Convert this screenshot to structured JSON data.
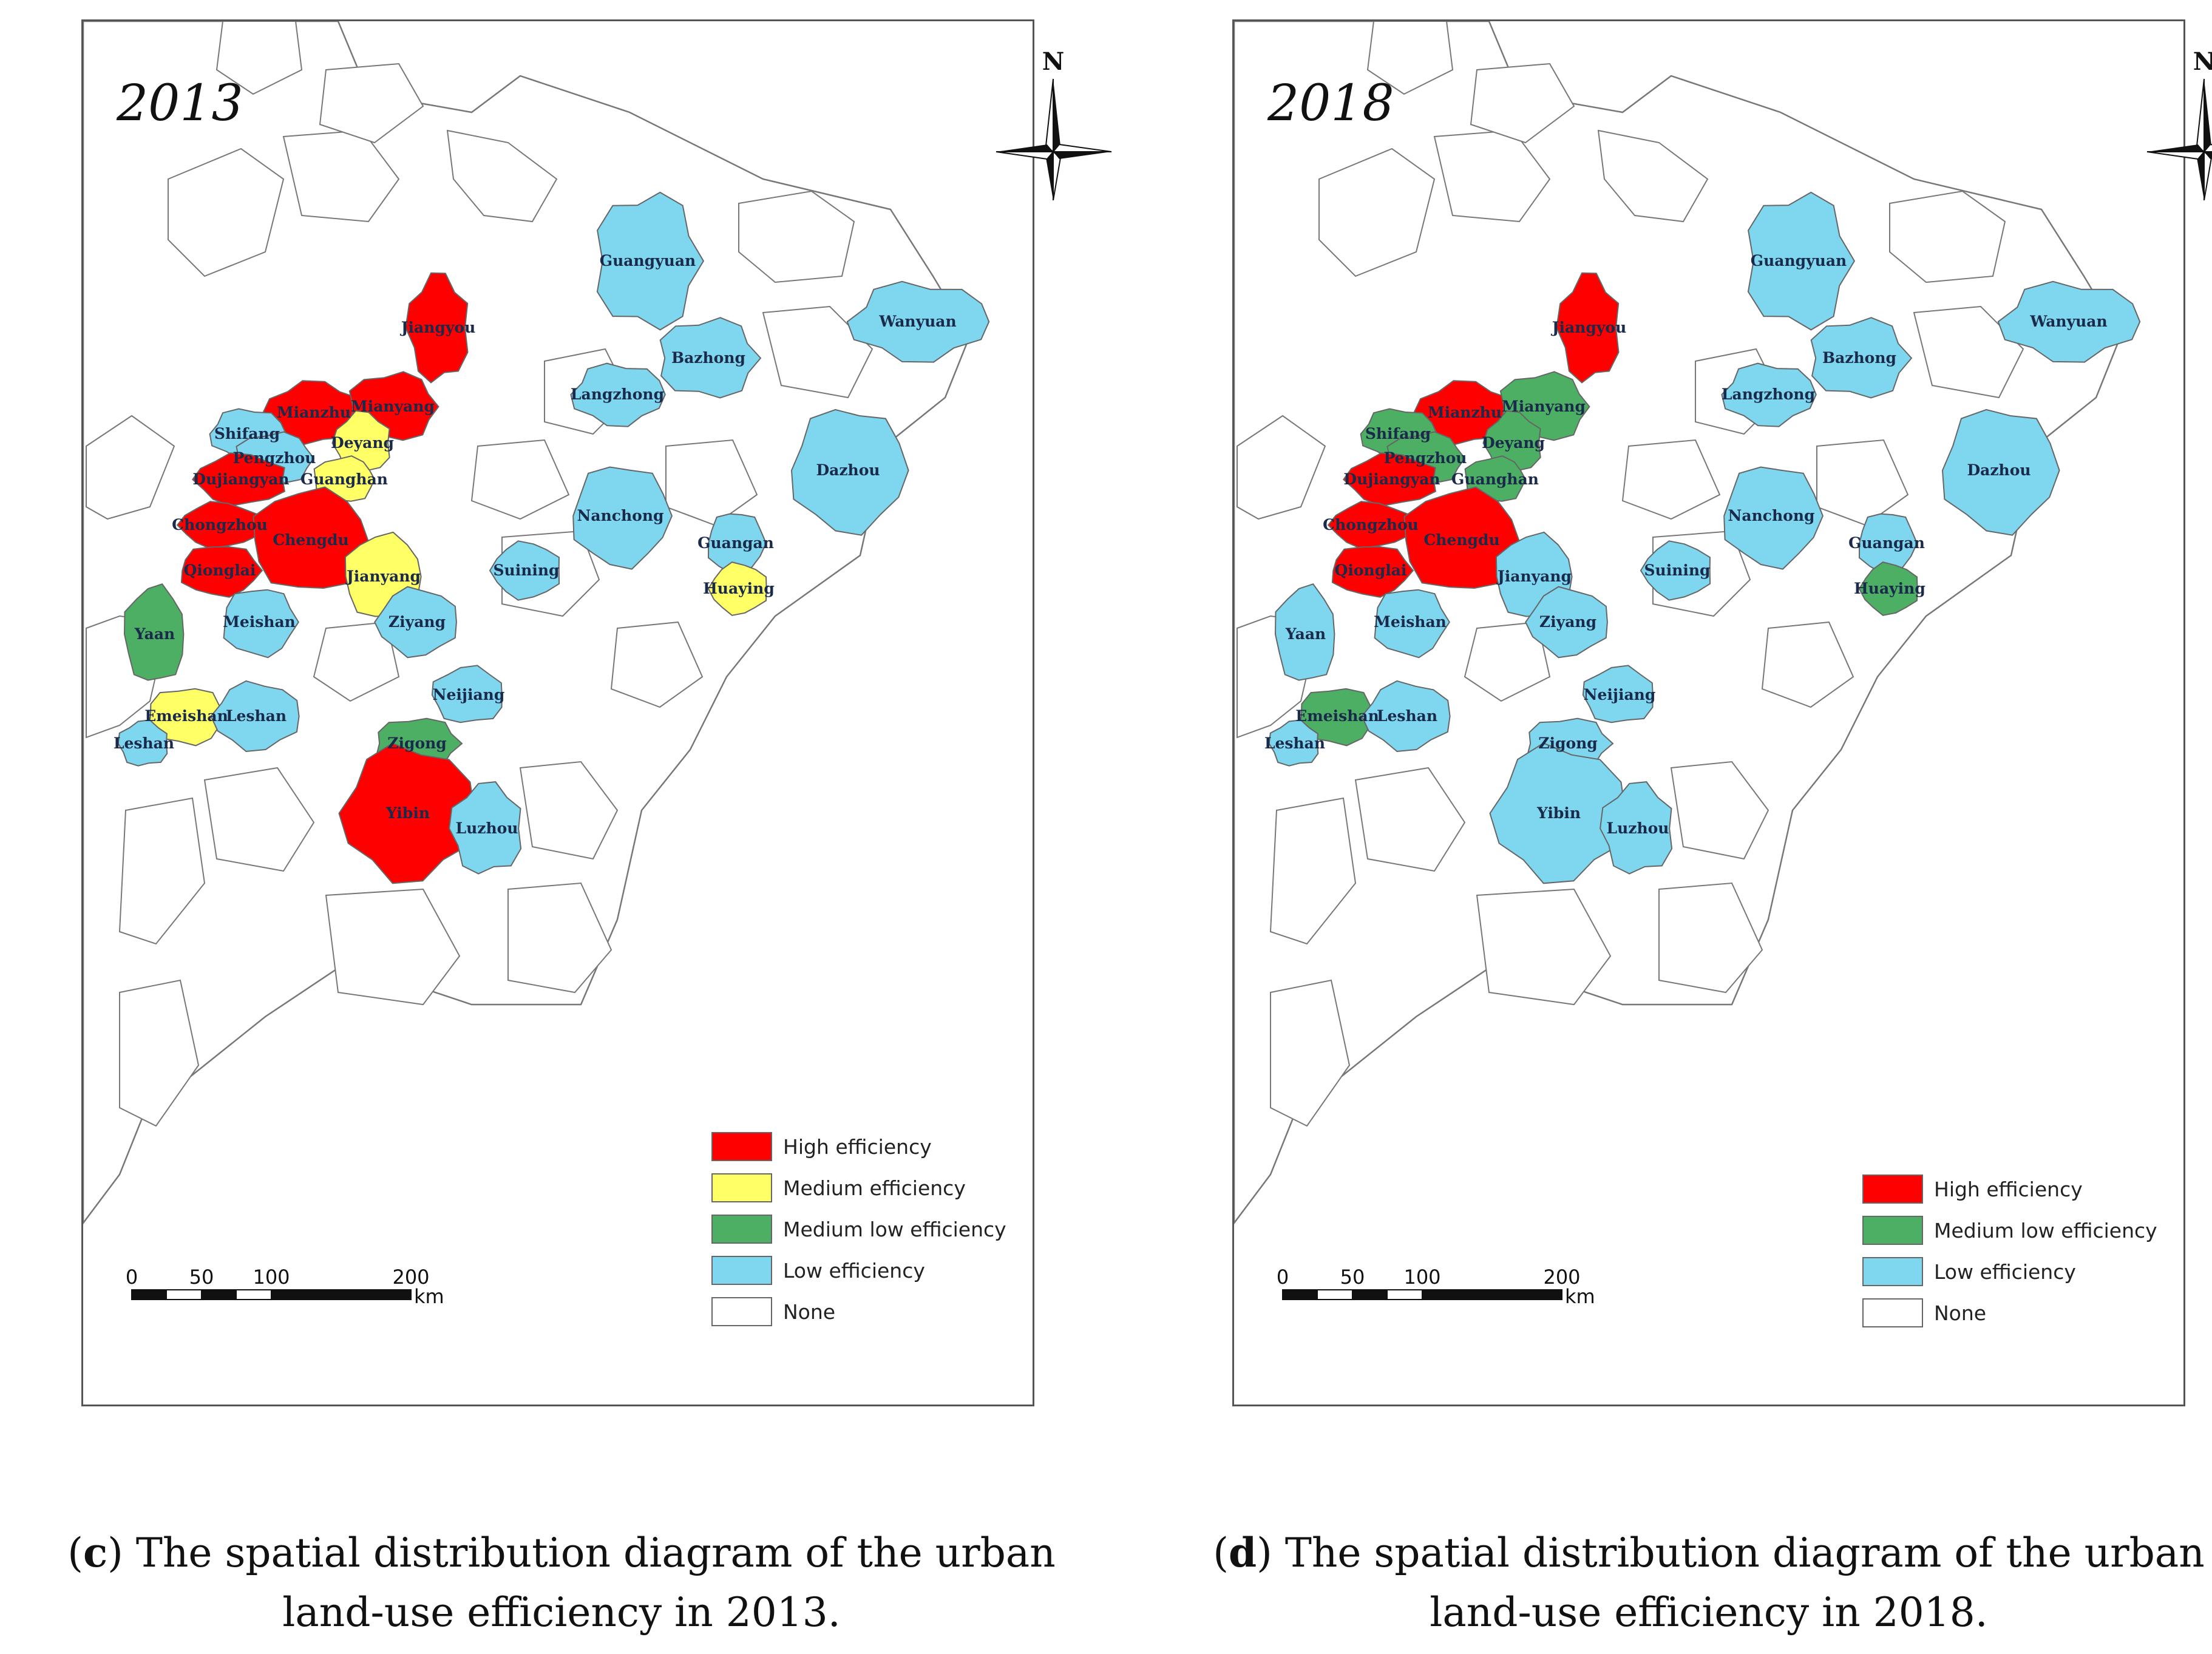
{
  "panels": [
    {
      "year": "2013",
      "legend": [
        {
          "label": "High efficiency",
          "color": "#ff0000"
        },
        {
          "label": "Medium efficiency",
          "color": "#ffff66"
        },
        {
          "label": "Medium low efficiency",
          "color": "#4caf63"
        },
        {
          "label": "Low efficiency",
          "color": "#7fd6ef"
        },
        {
          "label": "None",
          "color": "#ffffff"
        }
      ],
      "scale": {
        "ticks": [
          "0",
          "50",
          "100",
          "200"
        ],
        "unit": "km"
      },
      "compass_label": "N",
      "cities": [
        {
          "name": "Guangyuan",
          "class": "Low efficiency"
        },
        {
          "name": "Wanyuan",
          "class": "Low efficiency"
        },
        {
          "name": "Jiangyou",
          "class": "High efficiency"
        },
        {
          "name": "Bazhong",
          "class": "Low efficiency"
        },
        {
          "name": "Langzhong",
          "class": "Low efficiency"
        },
        {
          "name": "Mianzhu",
          "class": "High efficiency"
        },
        {
          "name": "Mianyang",
          "class": "High efficiency"
        },
        {
          "name": "Shifang",
          "class": "Low efficiency"
        },
        {
          "name": "Deyang",
          "class": "Medium efficiency"
        },
        {
          "name": "Pengzhou",
          "class": "Low efficiency"
        },
        {
          "name": "Dazhou",
          "class": "Low efficiency"
        },
        {
          "name": "Dujiangyan",
          "class": "High efficiency"
        },
        {
          "name": "Guanghan",
          "class": "Medium efficiency"
        },
        {
          "name": "Nanchong",
          "class": "Low efficiency"
        },
        {
          "name": "Chongzhou",
          "class": "High efficiency"
        },
        {
          "name": "Chengdu",
          "class": "High efficiency"
        },
        {
          "name": "Guangan",
          "class": "Low efficiency"
        },
        {
          "name": "Suining",
          "class": "Low efficiency"
        },
        {
          "name": "Jianyang",
          "class": "Medium efficiency"
        },
        {
          "name": "Qionglai",
          "class": "High efficiency"
        },
        {
          "name": "Huaying",
          "class": "Medium efficiency"
        },
        {
          "name": "Yaan",
          "class": "Medium low efficiency"
        },
        {
          "name": "Meishan",
          "class": "Low efficiency"
        },
        {
          "name": "Ziyang",
          "class": "Low efficiency"
        },
        {
          "name": "Neijiang",
          "class": "Low efficiency"
        },
        {
          "name": "Emeishan",
          "class": "Medium efficiency"
        },
        {
          "name": "Leshan",
          "class": "Low efficiency"
        },
        {
          "name": "Leshan",
          "class": "Low efficiency"
        },
        {
          "name": "Zigong",
          "class": "Medium low efficiency"
        },
        {
          "name": "Yibin",
          "class": "High efficiency"
        },
        {
          "name": "Luzhou",
          "class": "Low efficiency"
        }
      ]
    },
    {
      "year": "2018",
      "legend": [
        {
          "label": "High efficiency",
          "color": "#ff0000"
        },
        {
          "label": "Medium low efficiency",
          "color": "#4caf63"
        },
        {
          "label": "Low efficiency",
          "color": "#7fd6ef"
        },
        {
          "label": "None",
          "color": "#ffffff"
        }
      ],
      "scale": {
        "ticks": [
          "0",
          "50",
          "100",
          "200"
        ],
        "unit": "km"
      },
      "compass_label": "N",
      "cities": [
        {
          "name": "Guangyuan",
          "class": "Low efficiency"
        },
        {
          "name": "Wanyuan",
          "class": "Low efficiency"
        },
        {
          "name": "Jiangyou",
          "class": "High efficiency"
        },
        {
          "name": "Bazhong",
          "class": "Low efficiency"
        },
        {
          "name": "Langzhong",
          "class": "Low efficiency"
        },
        {
          "name": "Mianzhu",
          "class": "High efficiency"
        },
        {
          "name": "Mianyang",
          "class": "Medium low efficiency"
        },
        {
          "name": "Shifang",
          "class": "Medium low efficiency"
        },
        {
          "name": "Deyang",
          "class": "Medium low efficiency"
        },
        {
          "name": "Pengzhou",
          "class": "Medium low efficiency"
        },
        {
          "name": "Dazhou",
          "class": "Low efficiency"
        },
        {
          "name": "Dujiangyan",
          "class": "High efficiency"
        },
        {
          "name": "Guanghan",
          "class": "Medium low efficiency"
        },
        {
          "name": "Nanchong",
          "class": "Low efficiency"
        },
        {
          "name": "Chongzhou",
          "class": "High efficiency"
        },
        {
          "name": "Chengdu",
          "class": "High efficiency"
        },
        {
          "name": "Guangan",
          "class": "Low efficiency"
        },
        {
          "name": "Suining",
          "class": "Low efficiency"
        },
        {
          "name": "Jianyang",
          "class": "Low efficiency"
        },
        {
          "name": "Qionglai",
          "class": "High efficiency"
        },
        {
          "name": "Huaying",
          "class": "Medium low efficiency"
        },
        {
          "name": "Yaan",
          "class": "Low efficiency"
        },
        {
          "name": "Meishan",
          "class": "Low efficiency"
        },
        {
          "name": "Ziyang",
          "class": "Low efficiency"
        },
        {
          "name": "Neijiang",
          "class": "Low efficiency"
        },
        {
          "name": "Emeishan",
          "class": "Medium low efficiency"
        },
        {
          "name": "Leshan",
          "class": "Low efficiency"
        },
        {
          "name": "Leshan",
          "class": "Low efficiency"
        },
        {
          "name": "Zigong",
          "class": "Low efficiency"
        },
        {
          "name": "Yibin",
          "class": "Low efficiency"
        },
        {
          "name": "Luzhou",
          "class": "Low efficiency"
        }
      ]
    }
  ],
  "captions": [
    {
      "letter": "c",
      "text": "The spatial distribution diagram of the urban land-use efficiency in 2013."
    },
    {
      "letter": "d",
      "text": "The spatial distribution diagram of the urban land-use efficiency in 2018."
    }
  ]
}
